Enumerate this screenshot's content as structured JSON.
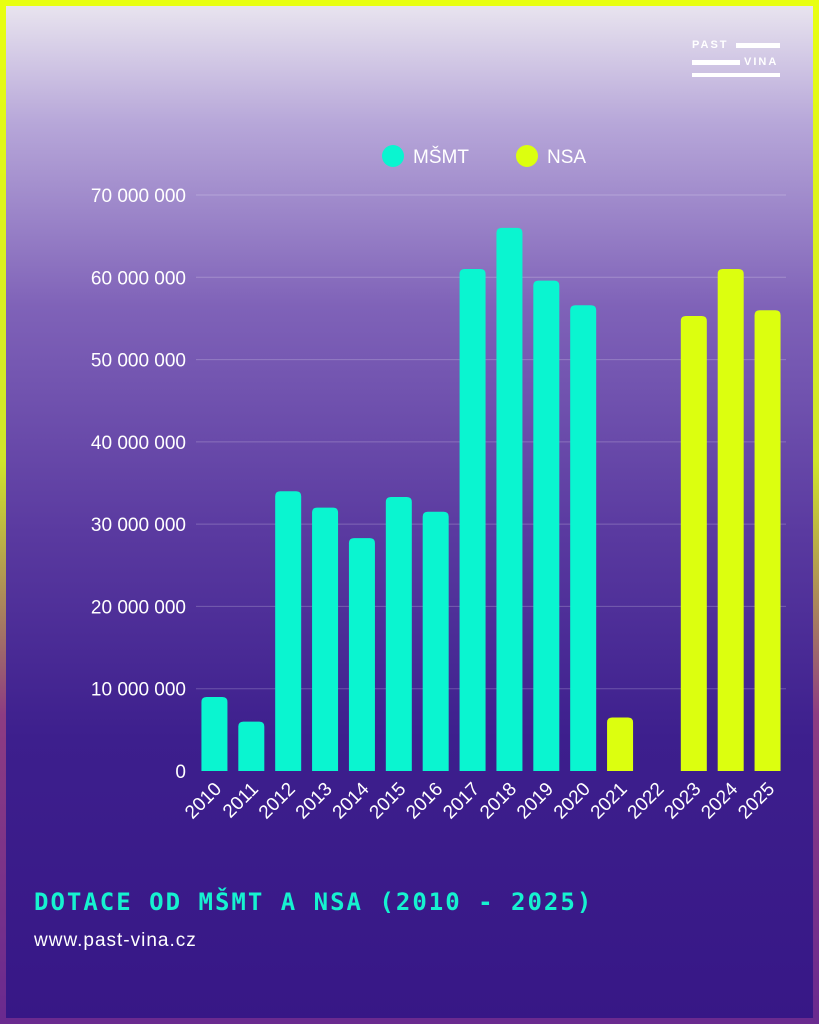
{
  "brand": {
    "logo_top": "PAST",
    "logo_bottom": "VINA",
    "website": "www.past-vina.cz"
  },
  "colors": {
    "msmt": "#0af5d0",
    "nsa": "#dcff0f"
  },
  "chart_data": {
    "type": "bar",
    "title": "DOTACE OD MŠMT A NSA (2010 - 2025)",
    "xlabel": "",
    "ylabel": "",
    "ylim": [
      0,
      70000000
    ],
    "yticks": [
      {
        "value": 0,
        "label": "0"
      },
      {
        "value": 10000000,
        "label": "10 000 000"
      },
      {
        "value": 20000000,
        "label": "20 000 000"
      },
      {
        "value": 30000000,
        "label": "30 000 000"
      },
      {
        "value": 40000000,
        "label": "40 000 000"
      },
      {
        "value": 50000000,
        "label": "50 000 000"
      },
      {
        "value": 60000000,
        "label": "60 000 000"
      },
      {
        "value": 70000000,
        "label": "70 000 000"
      }
    ],
    "grid": true,
    "legend_position": "top-center",
    "categories": [
      "2010",
      "2011",
      "2012",
      "2013",
      "2014",
      "2015",
      "2016",
      "2017",
      "2018",
      "2019",
      "2020",
      "2021",
      "2022",
      "2023",
      "2024",
      "2025"
    ],
    "series": [
      {
        "name": "MŠMT",
        "color": "#0af5d0",
        "values": [
          9000000,
          6000000,
          34000000,
          32000000,
          28300000,
          33300000,
          31500000,
          61000000,
          66000000,
          59600000,
          56600000,
          null,
          null,
          null,
          null,
          null
        ]
      },
      {
        "name": "NSA",
        "color": "#dcff0f",
        "values": [
          null,
          null,
          null,
          null,
          null,
          null,
          null,
          null,
          null,
          null,
          null,
          6500000,
          null,
          55300000,
          61000000,
          56000000
        ]
      }
    ]
  }
}
